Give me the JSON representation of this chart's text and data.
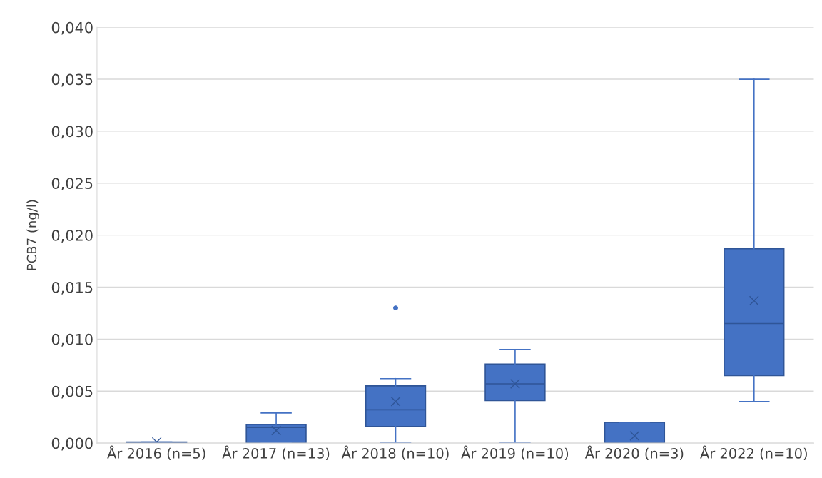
{
  "chart_data": {
    "type": "box",
    "ylabel": "PCB7 (ng/l)",
    "categories": [
      "År 2016 (n=5)",
      "År 2017 (n=13)",
      "År 2018 (n=10)",
      "År 2019 (n=10)",
      "År 2020 (n=3)",
      "År 2022 (n=10)"
    ],
    "boxes": [
      {
        "low": 0,
        "q1": 0,
        "median": 0,
        "q3": 0.0001,
        "high": 0.0001,
        "mean": 0.0001
      },
      {
        "low": 0,
        "q1": 0,
        "median": 0.0015,
        "q3": 0.0018,
        "high": 0.0029,
        "mean": 0.0012
      },
      {
        "low": 0,
        "q1": 0.0016,
        "median": 0.0032,
        "q3": 0.0055,
        "high": 0.0062,
        "mean": 0.004,
        "outliers": [
          0.013
        ]
      },
      {
        "low": 0,
        "q1": 0.0041,
        "median": 0.0057,
        "q3": 0.0076,
        "high": 0.009,
        "mean": 0.0057
      },
      {
        "low": 0,
        "q1": 0,
        "median": 0,
        "q3": 0.002,
        "high": 0.002,
        "mean": 0.0007
      },
      {
        "low": 0.004,
        "q1": 0.0065,
        "median": 0.0115,
        "q3": 0.0187,
        "high": 0.035,
        "mean": 0.0137
      }
    ],
    "color": "#4472c4",
    "ylim": [
      0,
      0.04
    ],
    "yticks": [
      {
        "value": 0,
        "label": "0,000"
      },
      {
        "value": 0.005,
        "label": "0,005"
      },
      {
        "value": 0.01,
        "label": "0,010"
      },
      {
        "value": 0.015,
        "label": "0,015"
      },
      {
        "value": 0.02,
        "label": "0,020"
      },
      {
        "value": 0.025,
        "label": "0,025"
      },
      {
        "value": 0.03,
        "label": "0,030"
      },
      {
        "value": 0.035,
        "label": "0,035"
      },
      {
        "value": 0.04,
        "label": "0,040"
      }
    ],
    "grid": "y",
    "marker": "cross"
  }
}
